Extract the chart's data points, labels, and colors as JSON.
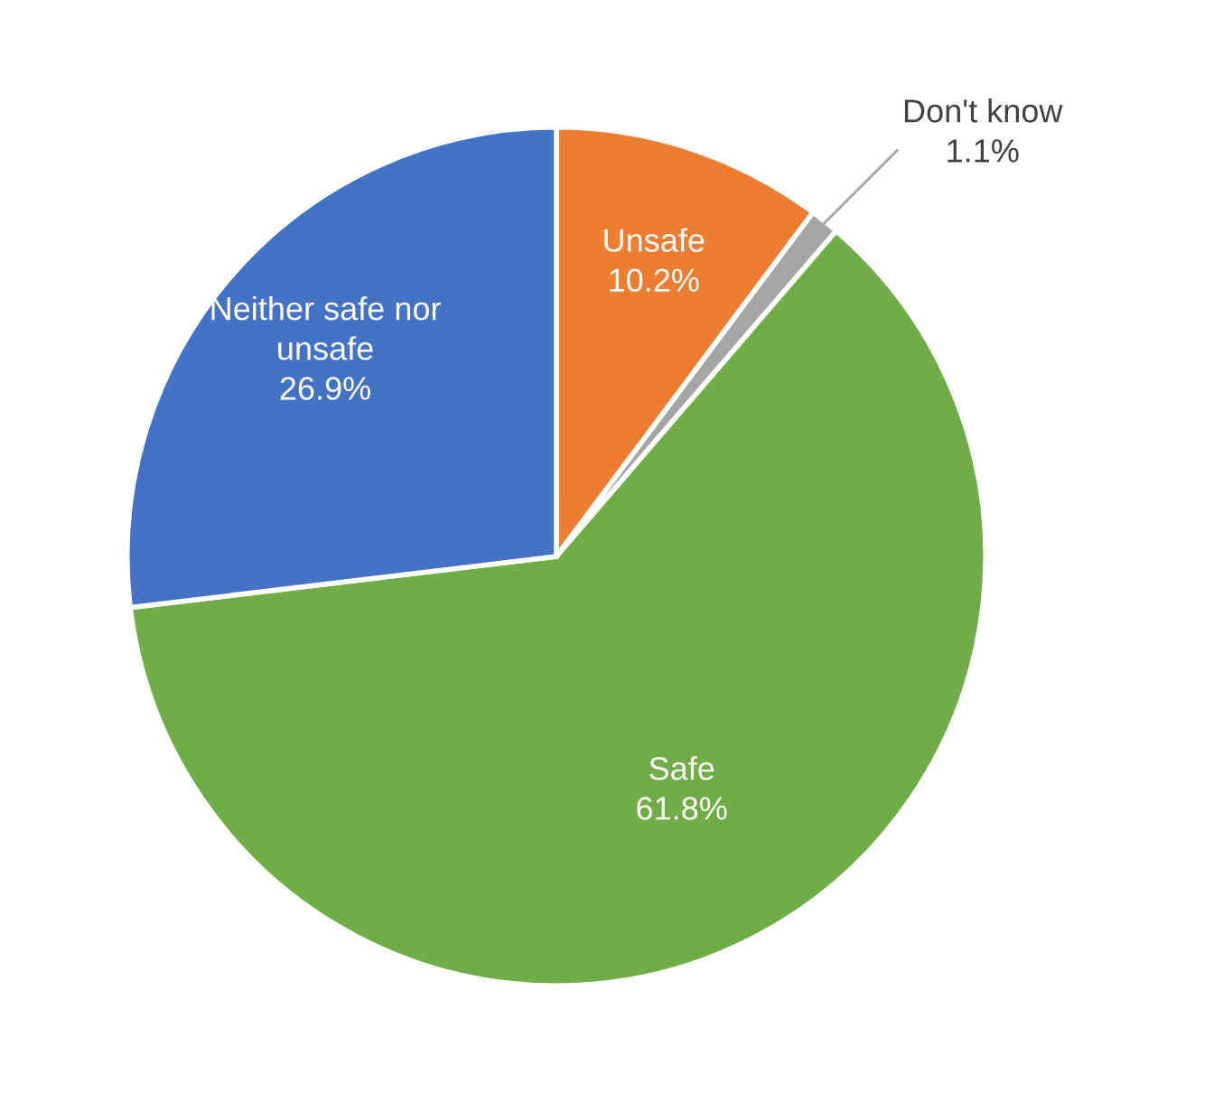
{
  "chart_data": {
    "type": "pie",
    "categories": [
      "Unsafe",
      "Don't know",
      "Safe",
      "Neither safe nor\nunsafe"
    ],
    "values": [
      10.2,
      1.1,
      61.8,
      26.9
    ],
    "colors": [
      "#ed7d31",
      "#a5a5a5",
      "#70ad47",
      "#4472c4"
    ],
    "value_labels": [
      "10.2%",
      "1.1%",
      "61.8%",
      "26.9%"
    ],
    "legend": false
  }
}
